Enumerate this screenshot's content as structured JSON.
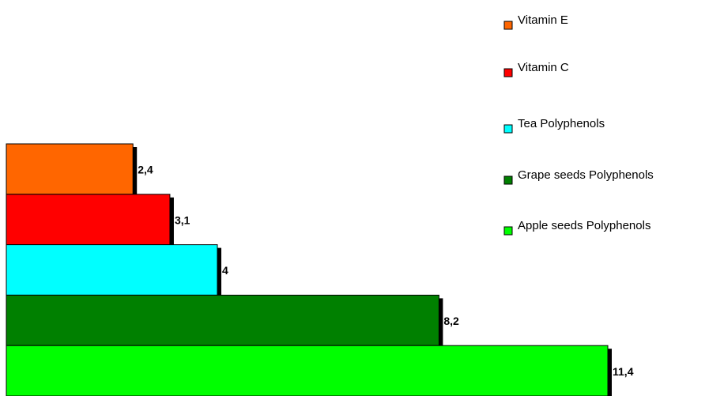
{
  "chart_data": {
    "type": "bar",
    "orientation": "horizontal",
    "series": [
      {
        "name": "Vitamin E",
        "color": "#ff6600",
        "values": [
          2.4
        ],
        "value_labels": [
          "2,4"
        ]
      },
      {
        "name": "Vitamin C",
        "color": "#ff0000",
        "values": [
          3.1
        ],
        "value_labels": [
          "3,1"
        ]
      },
      {
        "name": "Tea Polyphenols",
        "color": "#00ffff",
        "values": [
          4
        ],
        "value_labels": [
          "4"
        ]
      },
      {
        "name": "Grape seeds Polyphenols",
        "color": "#008000",
        "values": [
          8.2
        ],
        "value_labels": [
          "8,2"
        ]
      },
      {
        "name": "Apple seeds Polyphenols",
        "color": "#00ff00",
        "values": [
          11.4
        ],
        "value_labels": [
          "11,4"
        ]
      }
    ]
  }
}
